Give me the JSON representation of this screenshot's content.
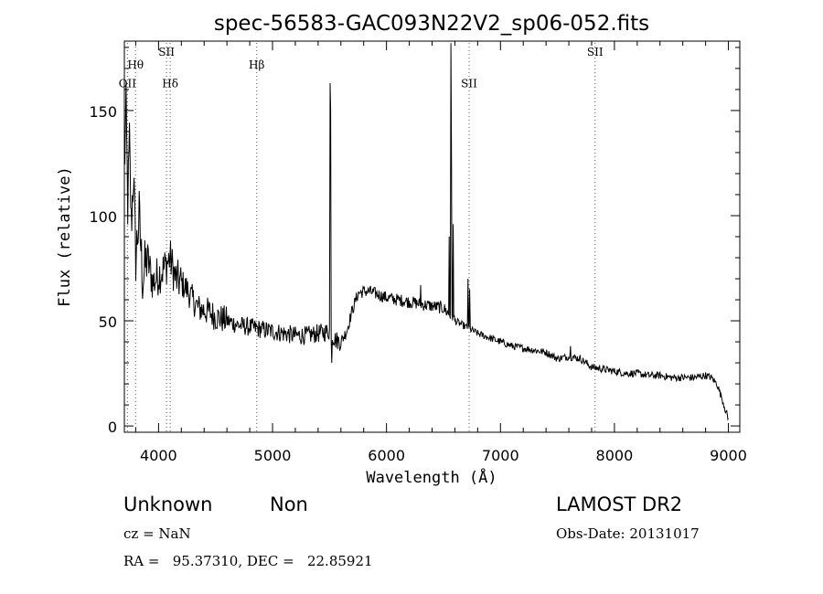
{
  "chart_data": {
    "type": "line",
    "title": "spec-56583-GAC093N22V2_sp06-052.fits",
    "xlabel": "Wavelength (Å)",
    "ylabel": "Flux (relative)",
    "xlim": [
      3700,
      9100
    ],
    "ylim": [
      -3,
      183
    ],
    "xticks": [
      "4000",
      "5000",
      "6000",
      "7000",
      "8000",
      "9000"
    ],
    "yticks": [
      "0",
      "50",
      "100",
      "150"
    ],
    "grid": false,
    "lines": [
      {
        "name": "OII",
        "x": 3727,
        "label_y": 161
      },
      {
        "name": "Hθ",
        "x": 3798,
        "label_y": 170
      },
      {
        "name": "SII",
        "x": 4070,
        "label_y": 176
      },
      {
        "name": "Hδ",
        "x": 4102,
        "label_y": 161
      },
      {
        "name": "Hβ",
        "x": 4861,
        "label_y": 170
      },
      {
        "name": "SII",
        "x": 6725,
        "label_y": 161
      },
      {
        "name": "SII",
        "x": 7830,
        "label_y": 176
      }
    ],
    "series": [
      {
        "anchors": [
          [
            3700,
            120
          ],
          [
            3715,
            150
          ],
          [
            3730,
            105
          ],
          [
            3745,
            135
          ],
          [
            3760,
            95
          ],
          [
            3780,
            120
          ],
          [
            3800,
            80
          ],
          [
            3830,
            100
          ],
          [
            3860,
            70
          ],
          [
            3900,
            80
          ],
          [
            3950,
            68
          ],
          [
            4000,
            72
          ],
          [
            4050,
            75
          ],
          [
            4100,
            80
          ],
          [
            4150,
            70
          ],
          [
            4200,
            68
          ],
          [
            4250,
            65
          ],
          [
            4300,
            60
          ],
          [
            4350,
            56
          ],
          [
            4400,
            55
          ],
          [
            4450,
            54
          ],
          [
            4500,
            52
          ],
          [
            4600,
            50
          ],
          [
            4700,
            48
          ],
          [
            4800,
            47
          ],
          [
            4900,
            46
          ],
          [
            5000,
            45
          ],
          [
            5100,
            44
          ],
          [
            5200,
            43
          ],
          [
            5300,
            43
          ],
          [
            5400,
            44
          ],
          [
            5500,
            45
          ],
          [
            5550,
            41
          ],
          [
            5600,
            40
          ],
          [
            5650,
            45
          ],
          [
            5700,
            55
          ],
          [
            5750,
            63
          ],
          [
            5800,
            64
          ],
          [
            5850,
            64
          ],
          [
            5900,
            63
          ],
          [
            5950,
            62
          ],
          [
            6000,
            61
          ],
          [
            6100,
            60
          ],
          [
            6200,
            59
          ],
          [
            6300,
            58
          ],
          [
            6400,
            57
          ],
          [
            6500,
            56
          ],
          [
            6600,
            50
          ],
          [
            6700,
            47
          ],
          [
            6800,
            44
          ],
          [
            6900,
            42
          ],
          [
            7000,
            40
          ],
          [
            7100,
            38
          ],
          [
            7200,
            37
          ],
          [
            7300,
            36
          ],
          [
            7400,
            35
          ],
          [
            7500,
            32
          ],
          [
            7600,
            33
          ],
          [
            7700,
            32
          ],
          [
            7800,
            28
          ],
          [
            7900,
            27
          ],
          [
            8000,
            26
          ],
          [
            8100,
            25
          ],
          [
            8200,
            25
          ],
          [
            8300,
            24
          ],
          [
            8400,
            24
          ],
          [
            8500,
            23
          ],
          [
            8600,
            23
          ],
          [
            8700,
            23
          ],
          [
            8800,
            24
          ],
          [
            8850,
            23
          ],
          [
            8900,
            20
          ],
          [
            8950,
            12
          ],
          [
            9000,
            3
          ]
        ],
        "spikes": [
          [
            5505,
            163
          ],
          [
            5512,
            150
          ],
          [
            5520,
            30
          ],
          [
            6300,
            67
          ],
          [
            6550,
            90
          ],
          [
            6563,
            182
          ],
          [
            6572,
            130
          ],
          [
            6583,
            96
          ],
          [
            6717,
            70
          ],
          [
            6731,
            65
          ],
          [
            7615,
            38
          ]
        ]
      }
    ]
  },
  "info": {
    "class": "Unknown",
    "subclass": "Non",
    "cz": "cz = NaN",
    "radec": "RA =   95.37310, DEC =   22.85921",
    "survey": "LAMOST DR2",
    "obsdate": "Obs-Date: 20131017"
  }
}
